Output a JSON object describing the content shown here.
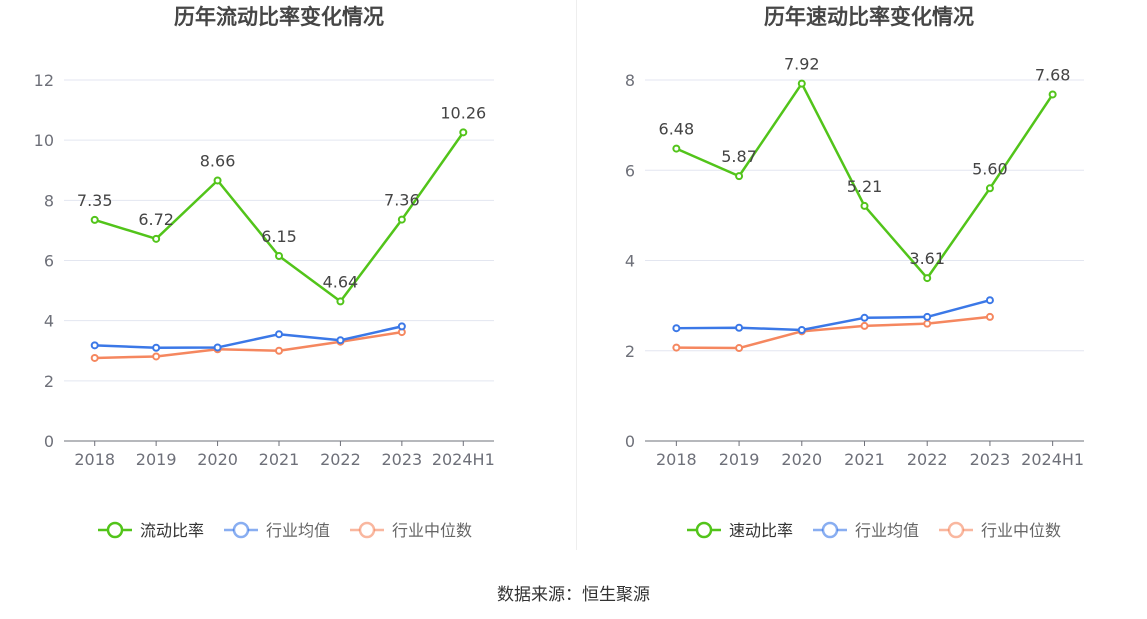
{
  "source_text": "数据来源：恒生聚源",
  "chart_data": [
    {
      "type": "line",
      "title": "历年流动比率变化情况",
      "categories": [
        "2018",
        "2019",
        "2020",
        "2021",
        "2022",
        "2023",
        "2024H1"
      ],
      "ylim": [
        0,
        12
      ],
      "yticks": [
        "0",
        "2",
        "4",
        "6",
        "8",
        "10",
        "12"
      ],
      "grid": true,
      "legend_position": "bottom",
      "series": [
        {
          "name": "流动比率",
          "color": "#52c41a",
          "values": [
            7.35,
            6.72,
            8.66,
            6.15,
            4.64,
            7.36,
            10.26
          ],
          "labels": [
            "7.35",
            "6.72",
            "8.66",
            "6.15",
            "4.64",
            "7.36",
            "10.26"
          ]
        },
        {
          "name": "行业均值",
          "color": "#3b78e7",
          "values": [
            3.18,
            3.1,
            3.11,
            3.55,
            3.35,
            3.81,
            null
          ]
        },
        {
          "name": "行业中位数",
          "color": "#f5875f",
          "values": [
            2.76,
            2.81,
            3.05,
            3.0,
            3.3,
            3.62,
            null
          ]
        }
      ]
    },
    {
      "type": "line",
      "title": "历年速动比率变化情况",
      "categories": [
        "2018",
        "2019",
        "2020",
        "2021",
        "2022",
        "2023",
        "2024H1"
      ],
      "ylim": [
        0,
        8
      ],
      "yticks": [
        "0",
        "2",
        "4",
        "6",
        "8"
      ],
      "grid": true,
      "legend_position": "bottom",
      "series": [
        {
          "name": "速动比率",
          "color": "#52c41a",
          "values": [
            6.48,
            5.87,
            7.92,
            5.21,
            3.61,
            5.6,
            7.68
          ],
          "labels": [
            "6.48",
            "5.87",
            "7.92",
            "5.21",
            "3.61",
            "5.60",
            "7.68"
          ]
        },
        {
          "name": "行业均值",
          "color": "#3b78e7",
          "values": [
            2.5,
            2.51,
            2.46,
            2.73,
            2.75,
            3.12,
            null
          ]
        },
        {
          "name": "行业中位数",
          "color": "#f5875f",
          "values": [
            2.07,
            2.06,
            2.43,
            2.55,
            2.6,
            2.75,
            null
          ]
        }
      ]
    }
  ]
}
